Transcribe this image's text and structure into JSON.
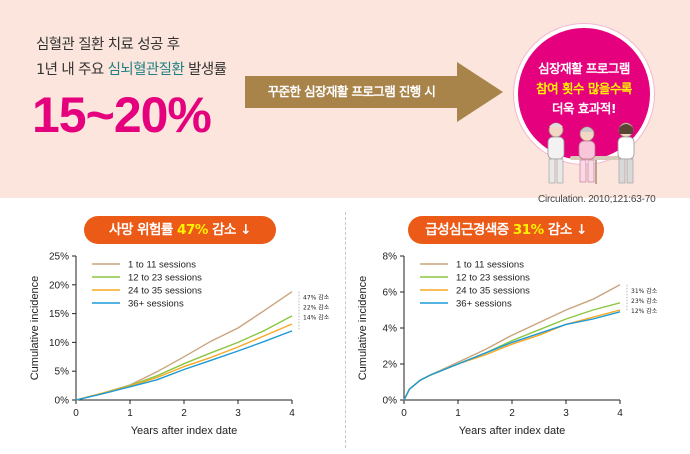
{
  "headline": {
    "line1": "심혈관 질환 치료 성공 후",
    "line2_prefix": "1년 내 주요 ",
    "line2_highlight": "심뇌혈관질환",
    "line2_suffix": " 발생률",
    "big_value": "15~20%"
  },
  "arrow": {
    "text": "꾸준한 심장재활 프로그램 진행 시"
  },
  "circle": {
    "line1": "심장재활 프로그램",
    "line2": "참여 횟수 많을수록",
    "line3": "더욱 효과적!"
  },
  "citation": "Circulation. 2010;121:63-70",
  "banners": [
    {
      "prefix": "사망 위험률 ",
      "pct": "47%",
      "suffix": " 감소 ↓"
    },
    {
      "prefix": "급성심근경색증 ",
      "pct": "31%",
      "suffix": " 감소 ↓"
    }
  ],
  "colors": {
    "accent_pink": "#e5007e",
    "banner_orange": "#eb5a16",
    "arrow_brown": "#a8834a",
    "series": [
      "#c9a47c",
      "#8cc63f",
      "#f7a823",
      "#1b9ad6"
    ]
  },
  "chart_data": [
    {
      "type": "line",
      "title": "",
      "xlabel": "Years after index date",
      "ylabel": "Cumulative incidence",
      "xlim": [
        0,
        4
      ],
      "ylim": [
        0,
        25
      ],
      "xticks": [
        "0",
        "1",
        "2",
        "3",
        "4"
      ],
      "yticks": [
        "0%",
        "5%",
        "10%",
        "15%",
        "20%",
        "25%"
      ],
      "legend": "top-left",
      "series": [
        {
          "name": "1 to 11 sessions",
          "x": [
            0,
            0.5,
            1,
            1.5,
            2,
            2.5,
            3,
            3.5,
            4
          ],
          "values": [
            0,
            1.2,
            2.6,
            4.9,
            7.5,
            10.2,
            12.5,
            15.6,
            18.8
          ]
        },
        {
          "name": "12 to 23 sessions",
          "x": [
            0,
            0.5,
            1,
            1.5,
            2,
            2.5,
            3,
            3.5,
            4
          ],
          "values": [
            0,
            1.2,
            2.5,
            4.2,
            6.3,
            8.2,
            10.0,
            12.1,
            14.6
          ]
        },
        {
          "name": "24 to 35 sessions",
          "x": [
            0,
            0.5,
            1,
            1.5,
            2,
            2.5,
            3,
            3.5,
            4
          ],
          "values": [
            0,
            1.2,
            2.4,
            3.9,
            5.8,
            7.4,
            9.2,
            11.2,
            13.2
          ]
        },
        {
          "name": "36+ sessions",
          "x": [
            0,
            0.5,
            1,
            1.5,
            2,
            2.5,
            3,
            3.5,
            4
          ],
          "values": [
            0,
            1.1,
            2.3,
            3.5,
            5.3,
            6.9,
            8.5,
            10.2,
            12.0
          ]
        }
      ],
      "annotations": [
        "47% 감소",
        "22% 감소",
        "14% 감소"
      ]
    },
    {
      "type": "line",
      "title": "",
      "xlabel": "Years after index date",
      "ylabel": "Cumulative incidence",
      "xlim": [
        0,
        4
      ],
      "ylim": [
        0,
        8
      ],
      "xticks": [
        "0",
        "1",
        "2",
        "3",
        "4"
      ],
      "yticks": [
        "0%",
        "2%",
        "4%",
        "6%",
        "8%"
      ],
      "legend": "top-left",
      "series": [
        {
          "name": "1 to 11 sessions",
          "x": [
            0,
            0.1,
            0.3,
            0.5,
            1,
            1.5,
            2,
            2.5,
            3,
            3.5,
            4
          ],
          "values": [
            0,
            0.6,
            1.1,
            1.4,
            2.1,
            2.8,
            3.6,
            4.3,
            5.0,
            5.6,
            6.4
          ]
        },
        {
          "name": "12 to 23 sessions",
          "x": [
            0,
            0.1,
            0.3,
            0.5,
            1,
            1.5,
            2,
            2.5,
            3,
            3.5,
            4
          ],
          "values": [
            0,
            0.6,
            1.1,
            1.4,
            2.0,
            2.6,
            3.3,
            3.9,
            4.5,
            5.0,
            5.4
          ]
        },
        {
          "name": "24 to 35 sessions",
          "x": [
            0,
            0.1,
            0.3,
            0.5,
            1,
            1.5,
            2,
            2.5,
            3,
            3.5,
            4
          ],
          "values": [
            0,
            0.6,
            1.1,
            1.4,
            2.0,
            2.5,
            3.1,
            3.6,
            4.2,
            4.6,
            5.0
          ]
        },
        {
          "name": "36+ sessions",
          "x": [
            0,
            0.1,
            0.3,
            0.5,
            1,
            1.5,
            2,
            2.5,
            3,
            3.5,
            4
          ],
          "values": [
            0,
            0.6,
            1.1,
            1.4,
            2.0,
            2.6,
            3.2,
            3.7,
            4.2,
            4.5,
            4.9
          ]
        }
      ],
      "annotations": [
        "31% 감소",
        "23% 감소",
        "12% 감소"
      ]
    }
  ]
}
